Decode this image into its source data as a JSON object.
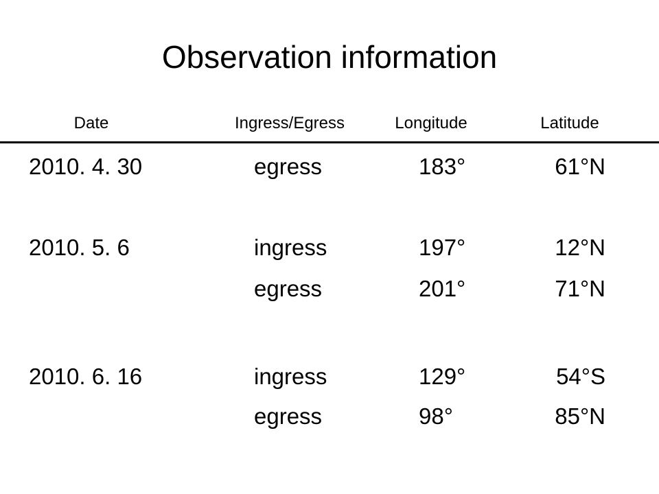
{
  "title": "Observation information",
  "table": {
    "header": [
      "Date",
      "Ingress/Egress",
      "Longitude",
      "Latitude"
    ],
    "rows": [
      [
        "2010. 4. 30",
        "egress",
        "183°",
        "61°N"
      ],
      [
        "2010. 5. 6",
        "ingress",
        "197°",
        "12°N"
      ],
      [
        null,
        "egress",
        "201°",
        "71°N"
      ],
      [
        "2010. 6. 16",
        "ingress",
        "129°",
        "54°S"
      ],
      [
        null,
        "egress",
        "98°",
        "85°N"
      ]
    ]
  }
}
